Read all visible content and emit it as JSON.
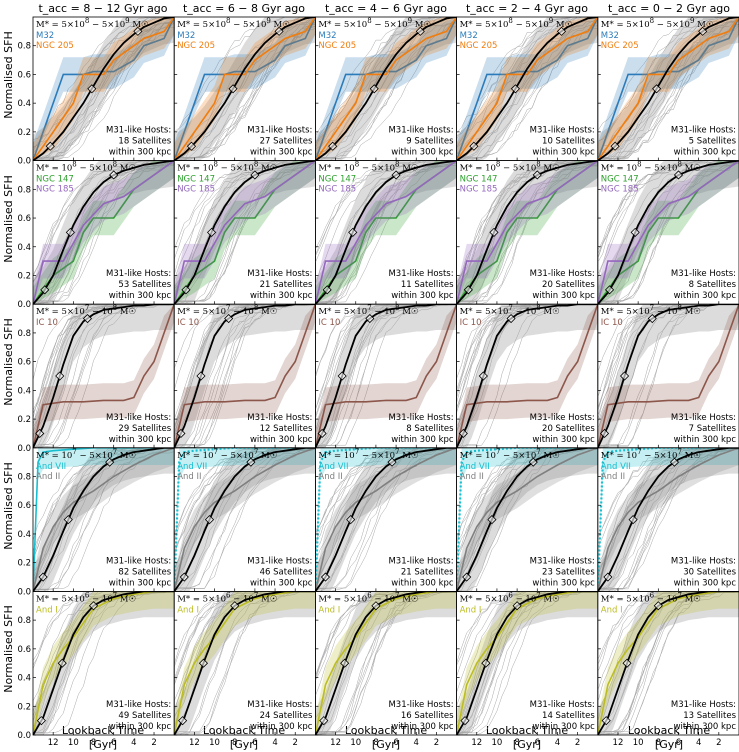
{
  "column_titles": [
    "t_acc = 8 − 12 Gyr ago",
    "t_acc = 6 − 8 Gyr ago",
    "t_acc = 4 − 6 Gyr ago",
    "t_acc = 2 − 4 Gyr ago",
    "t_acc = 0 − 2 Gyr ago"
  ],
  "ylabel": "Normalised SFH",
  "xlabel_line1": "Lookback Time",
  "xlabel_line2": "[Gyr]",
  "host_label_line1": "M31-like Hosts:",
  "host_label_line3": "within 300 kpc",
  "satellite_word": "Satellites",
  "colors": {
    "median": "#000000",
    "spread": "#9a9a9a",
    "individual": "#a8a8a8"
  },
  "chart_data": {
    "type": "line",
    "xlim": [
      14,
      0
    ],
    "ylim": [
      0,
      1
    ],
    "x_ticks": [
      12,
      10,
      8,
      6,
      4,
      2
    ],
    "y_ticks": [
      0.0,
      0.2,
      0.4,
      0.6,
      0.8
    ],
    "rows": [
      {
        "mass_label": "M* = 5×10^8 − 5×10^9 M☉",
        "satellite_counts": [
          18,
          27,
          9,
          10,
          5
        ],
        "galaxies": [
          {
            "name": "M32",
            "color": "#2b7bba",
            "x": [
              14,
              11,
              9,
              8,
              6,
              4,
              3,
              1,
              0
            ],
            "y": [
              0.0,
              0.6,
              0.6,
              0.62,
              0.62,
              0.7,
              0.8,
              0.85,
              1.0
            ]
          },
          {
            "name": "NGC 205",
            "color": "#f07d0e",
            "x": [
              14,
              12,
              10,
              9,
              7,
              6,
              4,
              3,
              1,
              0
            ],
            "y": [
              0.0,
              0.2,
              0.4,
              0.6,
              0.6,
              0.7,
              0.8,
              0.85,
              0.9,
              1.0
            ]
          }
        ],
        "median_x": [
          14,
          13,
          12,
          11,
          10,
          9,
          8,
          7,
          6,
          5,
          4,
          3,
          2,
          1,
          0
        ],
        "median_y": [
          0.0,
          0.05,
          0.12,
          0.2,
          0.3,
          0.4,
          0.52,
          0.64,
          0.74,
          0.82,
          0.88,
          0.93,
          0.96,
          0.99,
          1.0
        ]
      },
      {
        "mass_label": "M* = 10^8 − 5×10^8 M☉",
        "satellite_counts": [
          53,
          21,
          11,
          20,
          8
        ],
        "galaxies": [
          {
            "name": "NGC 147",
            "color": "#2ca02c",
            "x": [
              14,
              12,
              10,
              9,
              8,
              6,
              4,
              2,
              0
            ],
            "y": [
              0.0,
              0.2,
              0.3,
              0.5,
              0.6,
              0.6,
              0.8,
              0.9,
              1.0
            ]
          },
          {
            "name": "NGC 185",
            "color": "#9467bd",
            "x": [
              14,
              13,
              11,
              9,
              7,
              5,
              3,
              1,
              0
            ],
            "y": [
              0.0,
              0.3,
              0.3,
              0.55,
              0.7,
              0.75,
              0.85,
              0.95,
              1.0
            ]
          }
        ],
        "median_x": [
          14,
          13,
          12,
          11,
          10,
          9,
          8,
          7,
          6,
          5,
          4,
          3,
          2,
          1,
          0
        ],
        "median_y": [
          0.0,
          0.08,
          0.2,
          0.38,
          0.55,
          0.68,
          0.78,
          0.85,
          0.9,
          0.93,
          0.95,
          0.97,
          0.98,
          0.99,
          1.0
        ]
      },
      {
        "mass_label": "M* = 5×10^7 − 10^8 M☉",
        "satellite_counts": [
          29,
          12,
          8,
          20,
          7
        ],
        "galaxies": [
          {
            "name": "IC 10",
            "color": "#8c564b",
            "x": [
              14,
              13,
              11,
              9,
              7,
              5,
              4,
              3,
              2,
              1,
              0
            ],
            "y": [
              0.0,
              0.3,
              0.32,
              0.32,
              0.33,
              0.33,
              0.35,
              0.5,
              0.6,
              0.8,
              1.0
            ]
          }
        ],
        "median_x": [
          14,
          13,
          12,
          11,
          10,
          9,
          8,
          7,
          6,
          5,
          4,
          3,
          2,
          1,
          0
        ],
        "median_y": [
          0.0,
          0.15,
          0.35,
          0.58,
          0.78,
          0.88,
          0.93,
          0.96,
          0.97,
          0.98,
          0.99,
          0.99,
          1.0,
          1.0,
          1.0
        ]
      },
      {
        "mass_label": "M* = 10^7 − 5×10^7 M☉",
        "satellite_counts": [
          82,
          46,
          21,
          23,
          30
        ],
        "galaxies": [
          {
            "name": "And VII",
            "color": "#17becf",
            "x": [
              14,
              13.5,
              13,
              12,
              10,
              8,
              6,
              4,
              2,
              0
            ],
            "y": [
              0.0,
              0.9,
              0.97,
              0.98,
              0.99,
              1.0,
              1.0,
              1.0,
              1.0,
              1.0
            ]
          },
          {
            "name": "And II",
            "color": "#7f7f7f",
            "x": [
              14,
              13,
              12,
              11,
              10,
              8,
              6,
              4,
              2,
              0
            ],
            "y": [
              0.0,
              0.3,
              0.45,
              0.55,
              0.62,
              0.7,
              0.8,
              0.88,
              0.95,
              1.0
            ]
          }
        ],
        "median_x": [
          14,
          13,
          12,
          11,
          10,
          9,
          8,
          7,
          6,
          5,
          4,
          3,
          2,
          1,
          0
        ],
        "median_y": [
          0.0,
          0.1,
          0.25,
          0.42,
          0.58,
          0.7,
          0.8,
          0.87,
          0.92,
          0.95,
          0.97,
          0.98,
          0.99,
          1.0,
          1.0
        ]
      },
      {
        "mass_label": "M* = 5×10^6 − 10^7 M☉",
        "satellite_counts": [
          49,
          24,
          16,
          14,
          13
        ],
        "galaxies": [
          {
            "name": "And I",
            "color": "#bcbd22",
            "x": [
              14,
              13,
              12,
              11,
              10,
              9,
              8,
              6,
              4,
              2,
              0
            ],
            "y": [
              0.0,
              0.35,
              0.5,
              0.6,
              0.68,
              0.78,
              0.88,
              0.95,
              0.98,
              1.0,
              1.0
            ]
          }
        ],
        "median_x": [
          14,
          13,
          12,
          11,
          10,
          9,
          8,
          7,
          6,
          5,
          4,
          3,
          2,
          1,
          0
        ],
        "median_y": [
          0.0,
          0.12,
          0.32,
          0.52,
          0.7,
          0.82,
          0.9,
          0.94,
          0.96,
          0.98,
          0.99,
          1.0,
          1.0,
          1.0,
          1.0
        ]
      }
    ]
  }
}
